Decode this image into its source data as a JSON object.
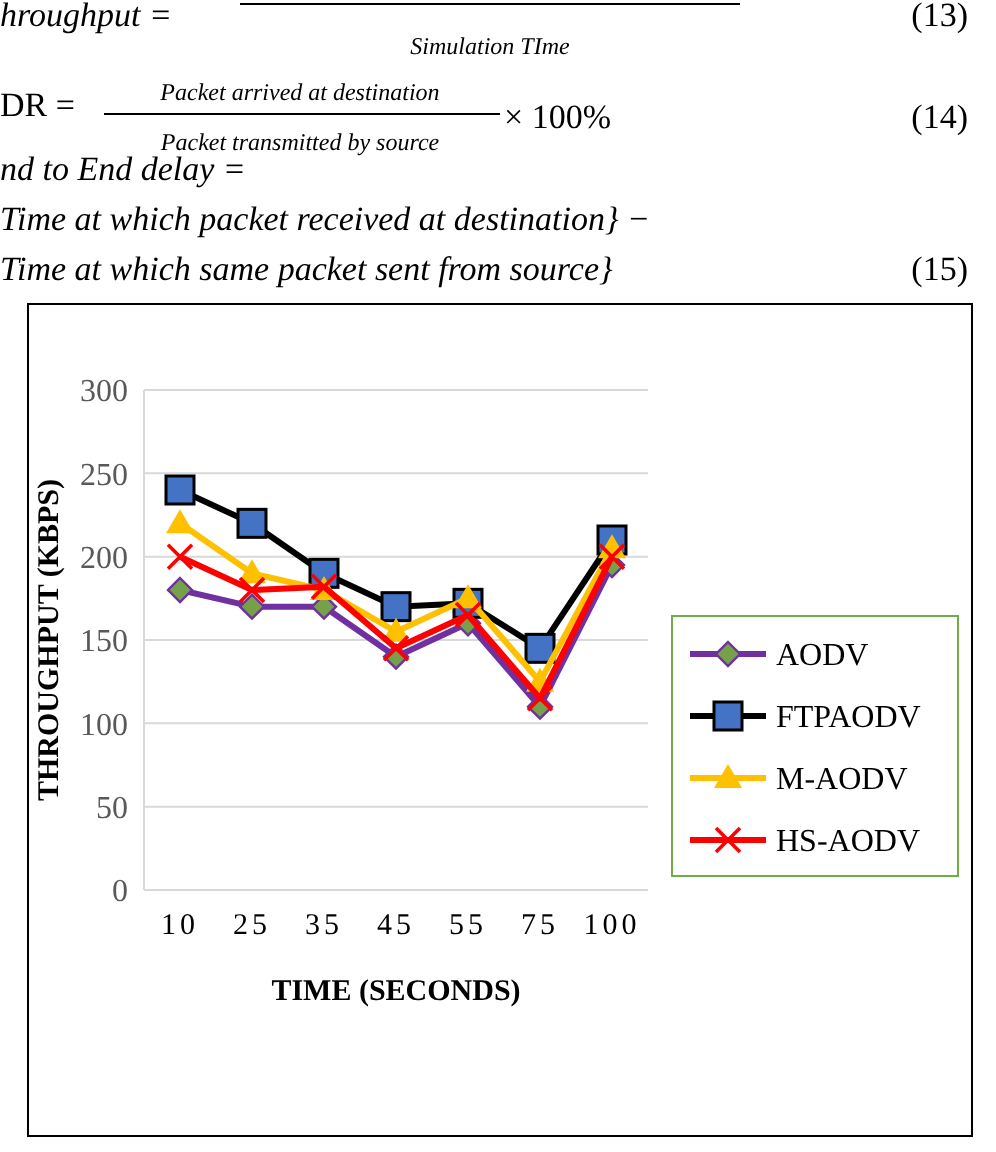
{
  "chart_data": {
    "type": "line",
    "xlabel": "TIME (SECONDS)",
    "ylabel": "THROUGHPUT (KBPS)",
    "categories": [
      "10",
      "25",
      "35",
      "45",
      "55",
      "75",
      "100"
    ],
    "ylim": [
      0,
      300
    ],
    "yticks": [
      0,
      50,
      100,
      150,
      200,
      250,
      300
    ],
    "grid": "y",
    "legend": "right",
    "line_style": "solid",
    "series": [
      {
        "name": "AODV",
        "color": "#7030a0",
        "marker": "diamond",
        "values": [
          180,
          170,
          170,
          140,
          160,
          110,
          195
        ]
      },
      {
        "name": "FTPAODV",
        "color": "#000000",
        "marker": "square",
        "values": [
          240,
          220,
          190,
          170,
          172,
          145,
          210
        ]
      },
      {
        "name": "M-AODV",
        "color": "#ffc000",
        "marker": "triangle",
        "values": [
          220,
          190,
          180,
          155,
          175,
          125,
          205
        ]
      },
      {
        "name": "HS-AODV",
        "color": "#ff0000",
        "marker": "cross",
        "values": [
          200,
          180,
          182,
          145,
          165,
          115,
          200
        ]
      }
    ],
    "annotations": [
      "hroughput =",
      "Simulation TIme",
      "(13)",
      "DR =",
      "Packet arrived at destination",
      "Packet transmitted by source",
      "× 100%",
      "(14)",
      "nd to End delay =",
      "Time at which packet received at destination} −",
      "Time at which same packet sent from source}",
      "(15)"
    ]
  }
}
